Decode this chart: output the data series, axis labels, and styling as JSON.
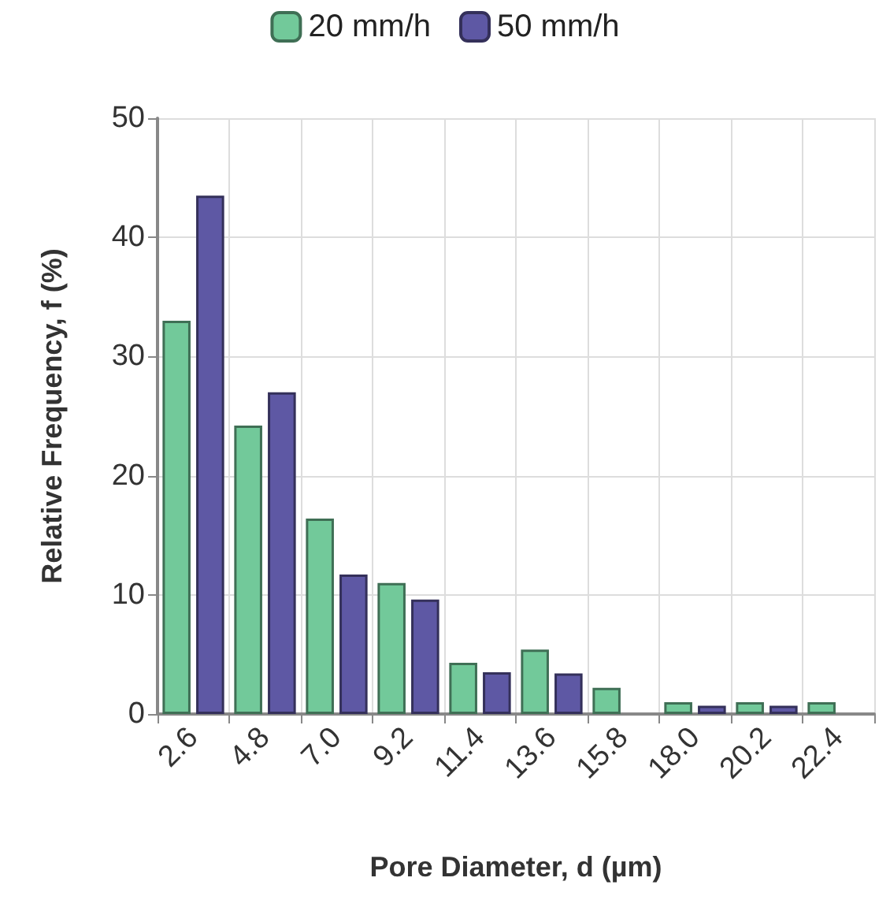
{
  "chart_data": {
    "type": "bar",
    "xlabel": "Pore Diameter, d (µm)",
    "ylabel": "Relative Frequency, f (%)",
    "categories": [
      "2.6",
      "4.8",
      "7.0",
      "9.2",
      "11.4",
      "13.6",
      "15.8",
      "18.0",
      "20.2",
      "22.4"
    ],
    "series": [
      {
        "name": "20 mm/h",
        "color": "#72c99a",
        "values": [
          33,
          24.2,
          16.4,
          11,
          4.3,
          5.4,
          2.2,
          1,
          1,
          1
        ]
      },
      {
        "name": "50 mm/h",
        "color": "#5e58a4",
        "values": [
          43.5,
          27,
          11.7,
          9.6,
          3.5,
          3.4,
          null,
          0.7,
          0.7,
          null
        ]
      }
    ],
    "ylim": [
      0,
      50
    ],
    "yticks": [
      0,
      10,
      20,
      30,
      40,
      50
    ],
    "grid": true,
    "legend": "top"
  }
}
